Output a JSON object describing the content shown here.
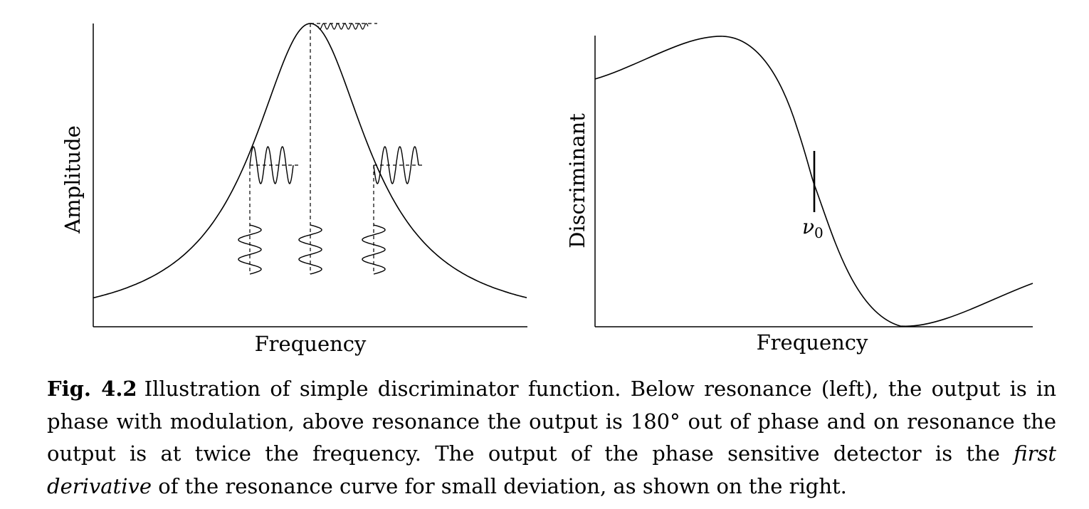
{
  "left_panel": {
    "y_label": "Amplitude",
    "x_label": "Frequency"
  },
  "right_panel": {
    "y_label": "Discriminant",
    "x_label": "Frequency",
    "marker_symbol": "ν",
    "marker_subscript": "0"
  },
  "caption": {
    "figure_number": "Fig. 4.2",
    "text_before_first": "Illustration of simple discriminator function. Below resonance (left), the output is in phase with modulation, above resonance the output is 180° out of phase and on resonance the output is at twice the frequency. The output of the phase sensitive detector is the ",
    "first_emph": "first derivative",
    "text_after": " of the resonance curve for small deviation, as shown on the right."
  }
}
